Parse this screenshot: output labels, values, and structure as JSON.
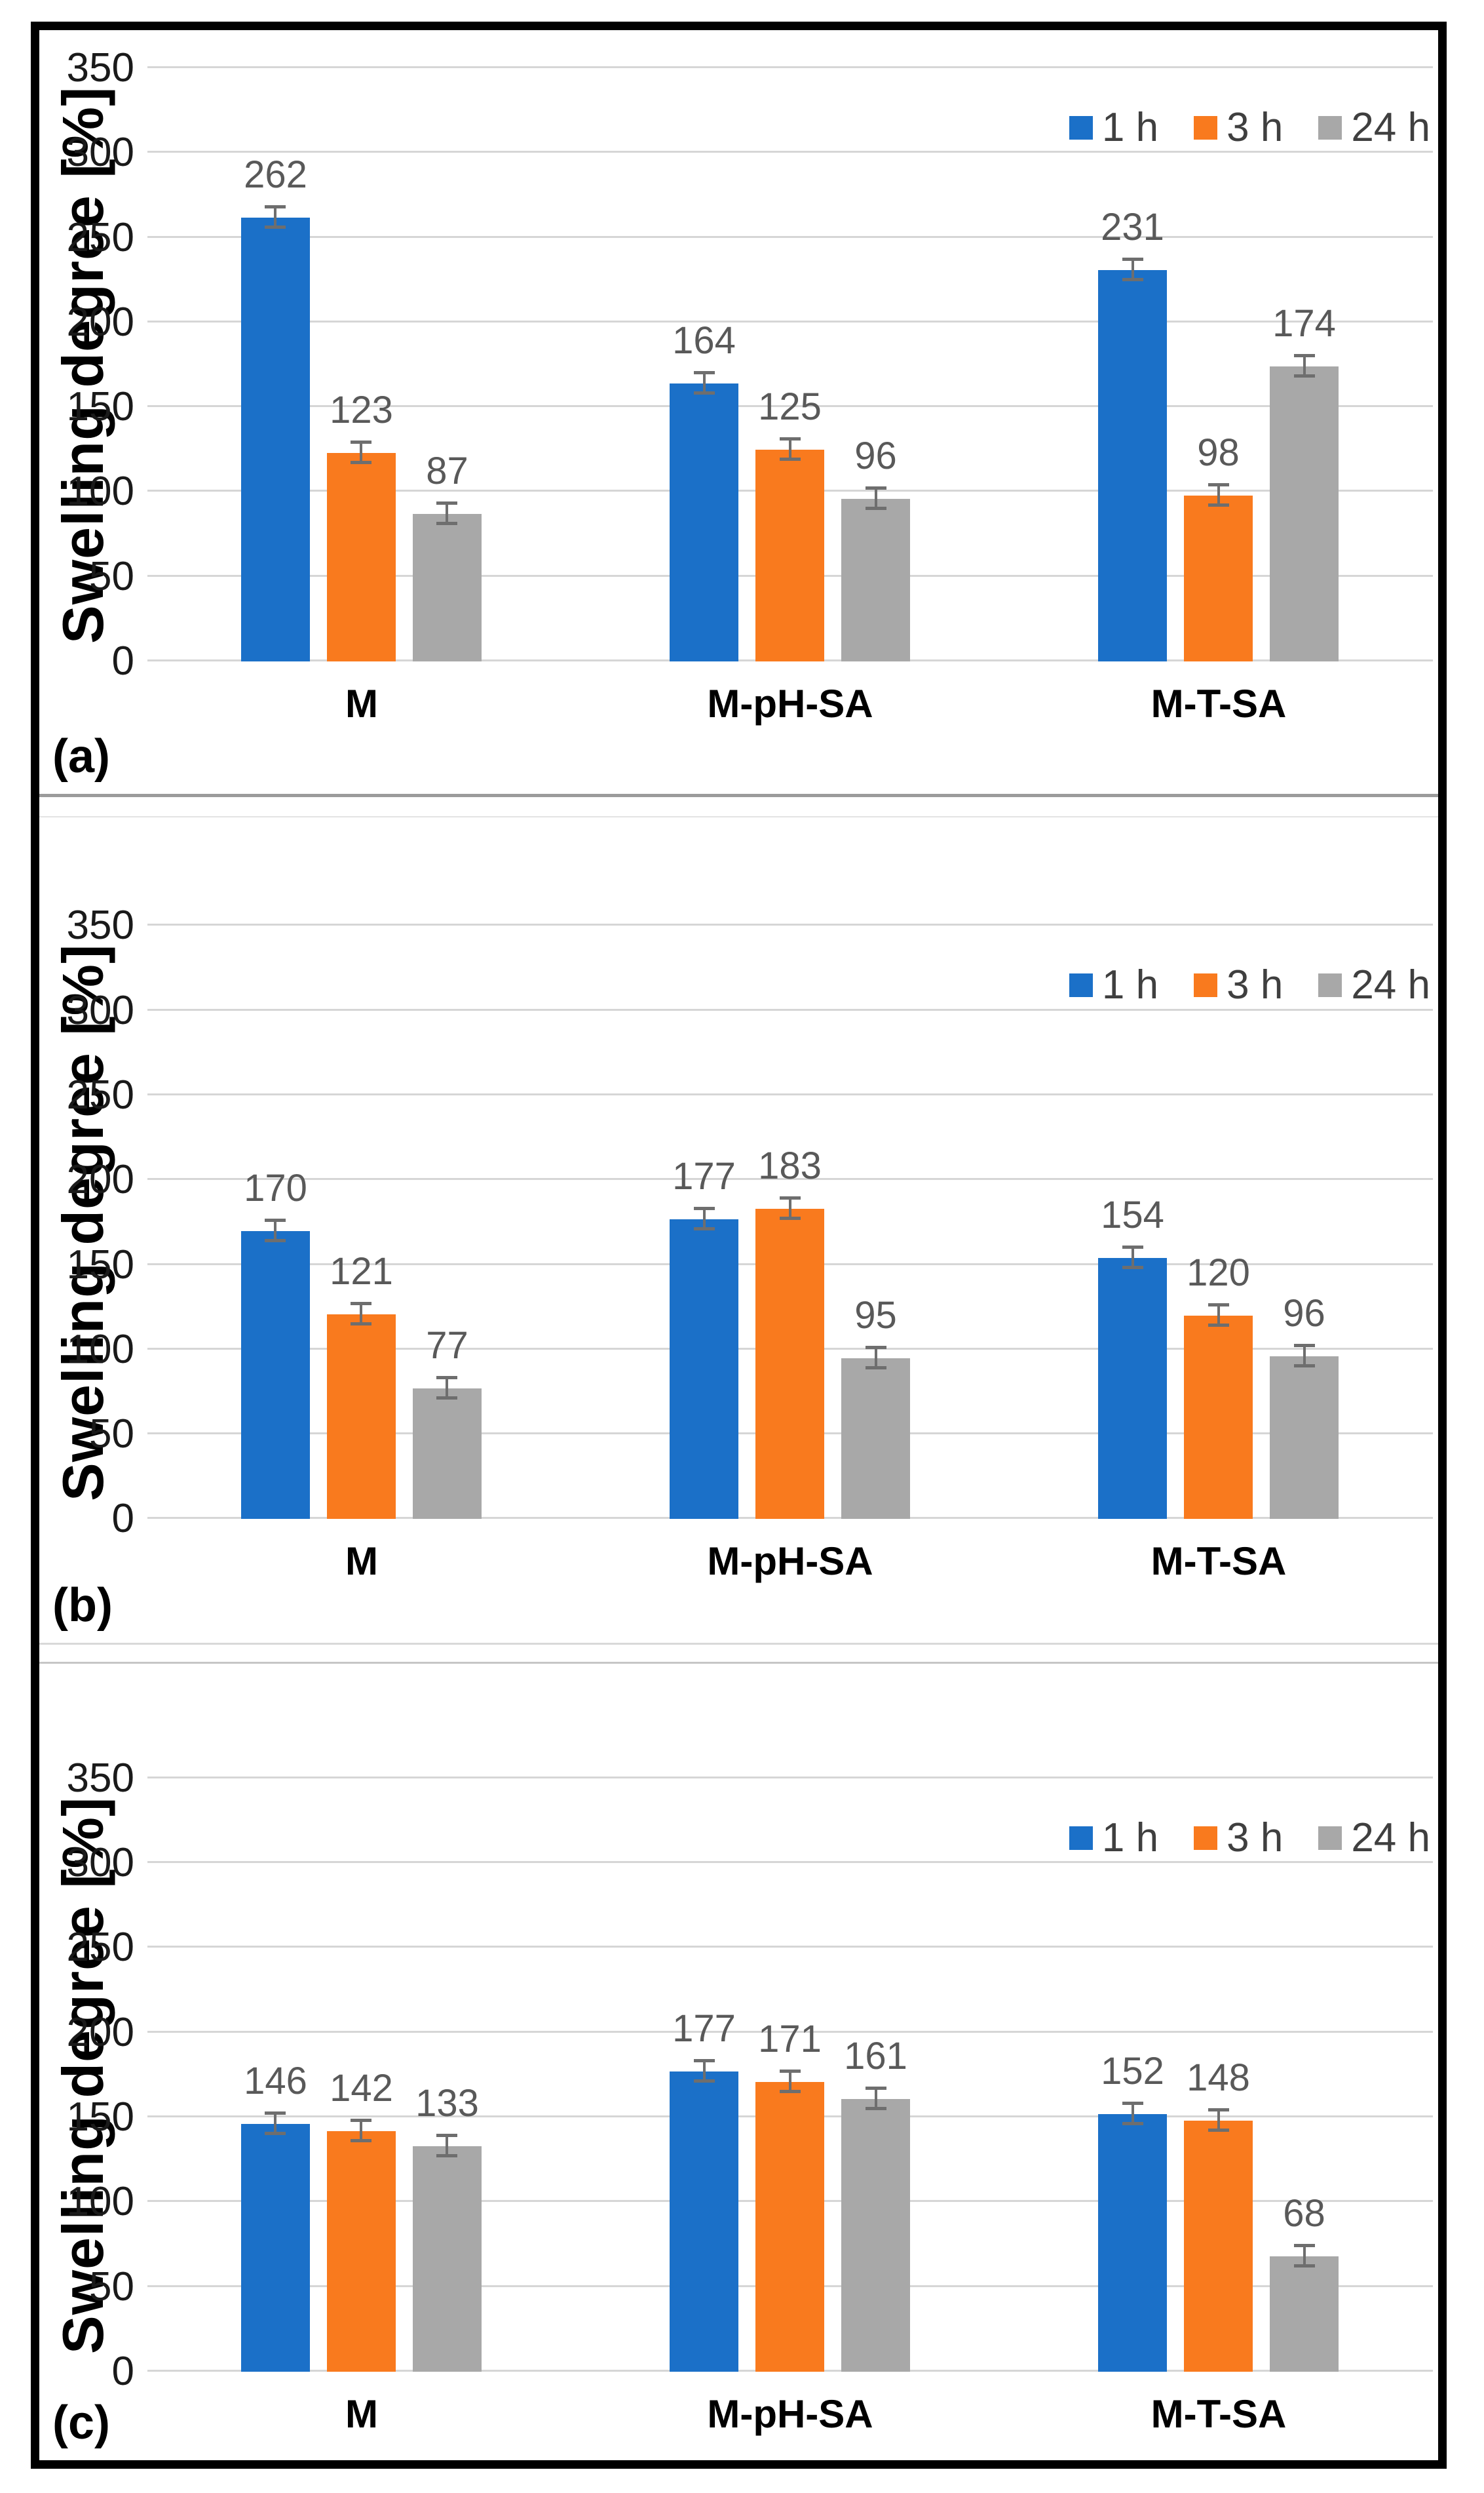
{
  "figure": {
    "panel_letters": [
      "(a)",
      "(b)",
      "(c)"
    ],
    "y_axis_title": "Swelling degree [%]",
    "legend_labels": [
      "1 h",
      "3 h",
      "24 h"
    ]
  },
  "colors": {
    "series_blue": "#1b70c8",
    "series_orange": "#f97a1e",
    "series_gray": "#a8a8a8",
    "gridline": "#d6d6d6",
    "error_bar": "#6e6e6e",
    "value_label": "#595959",
    "outer_border": "#000000"
  },
  "chart_data": [
    {
      "type": "bar",
      "panel_label": "(a)",
      "ylabel": "Swelling degree [%]",
      "ylim": [
        0,
        350
      ],
      "yticks": [
        0,
        50,
        100,
        150,
        200,
        250,
        300,
        350
      ],
      "categories": [
        "M",
        "M-pH-SA",
        "M-T-SA"
      ],
      "series": [
        {
          "name": "1 h",
          "color": "#1b70c8",
          "values": [
            262,
            164,
            231
          ]
        },
        {
          "name": "3 h",
          "color": "#f97a1e",
          "values": [
            123,
            125,
            98
          ]
        },
        {
          "name": "24 h",
          "color": "#a8a8a8",
          "values": [
            87,
            96,
            174
          ]
        }
      ],
      "error_approx": 6,
      "grid": true,
      "legend_position": "top-right",
      "error_bars": true
    },
    {
      "type": "bar",
      "panel_label": "(b)",
      "ylabel": "Swelling degree [%]",
      "ylim": [
        0,
        350
      ],
      "yticks": [
        0,
        50,
        100,
        150,
        200,
        250,
        300,
        350
      ],
      "categories": [
        "M",
        "M-pH-SA",
        "M-T-SA"
      ],
      "series": [
        {
          "name": "1 h",
          "color": "#1b70c8",
          "values": [
            170,
            177,
            154
          ]
        },
        {
          "name": "3 h",
          "color": "#f97a1e",
          "values": [
            121,
            183,
            120
          ]
        },
        {
          "name": "24 h",
          "color": "#a8a8a8",
          "values": [
            77,
            95,
            96
          ]
        }
      ],
      "error_approx": 6,
      "grid": true,
      "legend_position": "top-right",
      "error_bars": true
    },
    {
      "type": "bar",
      "panel_label": "(c)",
      "ylabel": "Swelling degree [%]",
      "ylim": [
        0,
        350
      ],
      "yticks": [
        0,
        50,
        100,
        150,
        200,
        250,
        300,
        350
      ],
      "categories": [
        "M",
        "M-pH-SA",
        "M-T-SA"
      ],
      "series": [
        {
          "name": "1 h",
          "color": "#1b70c8",
          "values": [
            146,
            177,
            152
          ]
        },
        {
          "name": "3 h",
          "color": "#f97a1e",
          "values": [
            142,
            171,
            148
          ]
        },
        {
          "name": "24 h",
          "color": "#a8a8a8",
          "values": [
            133,
            161,
            68
          ]
        }
      ],
      "error_approx": 6,
      "grid": true,
      "legend_position": "top-right",
      "error_bars": true
    }
  ]
}
